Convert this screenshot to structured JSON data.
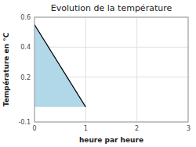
{
  "chart_data": {
    "type": "area",
    "title": "Evolution de la température",
    "x_label": "heure par heure",
    "y_label": "Température en °C",
    "xlim": [
      0,
      3
    ],
    "ylim": [
      -0.1,
      0.6
    ],
    "xticks": [
      0,
      1,
      2,
      3
    ],
    "yticks": [
      -0.1,
      0.2,
      0.4,
      0.6
    ],
    "grid": true,
    "series": [
      {
        "type": "area",
        "color": "#b0d8e8",
        "x": [
          0,
          0,
          1,
          1
        ],
        "values": [
          0,
          0.55,
          0,
          0
        ]
      },
      {
        "type": "line",
        "color": "#000000",
        "x": [
          0,
          1
        ],
        "values": [
          0.55,
          0
        ]
      }
    ]
  }
}
